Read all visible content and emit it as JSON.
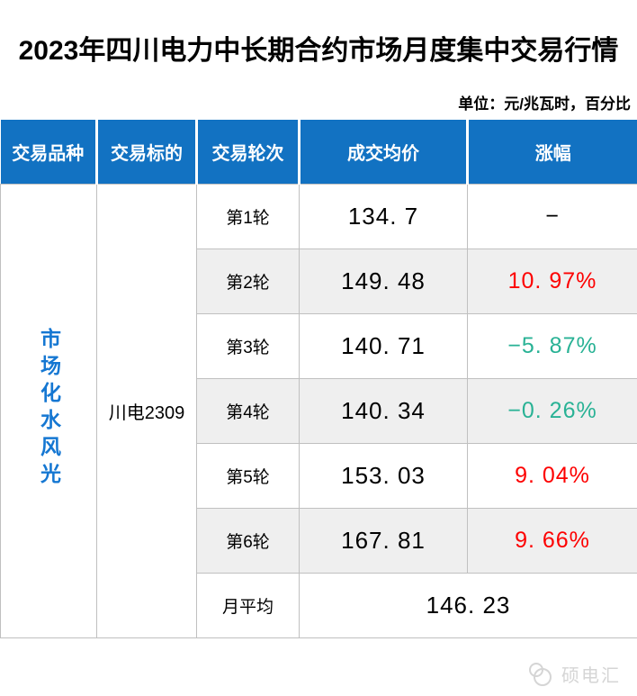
{
  "page": {
    "title": "2023年四川电力中长期合约市场月度集中交易行情",
    "unit_note": "单位：元/兆瓦时，百分比"
  },
  "chart_data": {
    "type": "table",
    "title": "2023年四川电力中长期合约市场月度集中交易行情",
    "unit_note": "单位：元/兆瓦时，百分比",
    "columns": [
      "交易品种",
      "交易标的",
      "交易轮次",
      "成交均价",
      "涨幅"
    ],
    "variety": "市场化水风光",
    "subject": "川电2309",
    "rows": [
      {
        "round": "第1轮",
        "price": "134. 7",
        "price_value": 134.7,
        "change": "−",
        "change_value": null,
        "trend": "none"
      },
      {
        "round": "第2轮",
        "price": "149. 48",
        "price_value": 149.48,
        "change": "10. 97%",
        "change_value": 10.97,
        "trend": "up"
      },
      {
        "round": "第3轮",
        "price": "140. 71",
        "price_value": 140.71,
        "change": "−5. 87%",
        "change_value": -5.87,
        "trend": "down"
      },
      {
        "round": "第4轮",
        "price": "140. 34",
        "price_value": 140.34,
        "change": "−0. 26%",
        "change_value": -0.26,
        "trend": "down"
      },
      {
        "round": "第5轮",
        "price": "153. 03",
        "price_value": 153.03,
        "change": "9. 04%",
        "change_value": 9.04,
        "trend": "up"
      },
      {
        "round": "第6轮",
        "price": "167. 81",
        "price_value": 167.81,
        "change": "9. 66%",
        "change_value": 9.66,
        "trend": "up"
      }
    ],
    "summary": {
      "label": "月平均",
      "value": "146. 23",
      "value_number": 146.23
    }
  },
  "colors": {
    "header_bg": "#1272c2",
    "up": "#fd0000",
    "down": "#29b295",
    "row_alt": "#efefef",
    "variety_text": "#1577d2",
    "grid": "#c0c0c0",
    "watermark": "#d5d5d5"
  },
  "watermark": {
    "brand": "硕电汇"
  }
}
